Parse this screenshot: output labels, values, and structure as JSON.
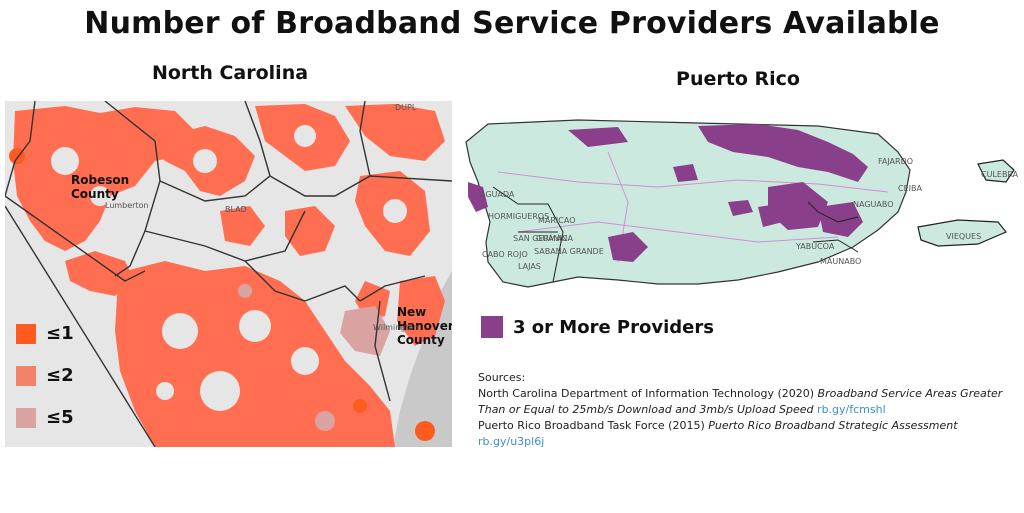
{
  "title": "Number of Broadband Service Providers Available",
  "north_carolina": {
    "title": "North Carolina",
    "county_labels": {
      "robeson": "Robeson\nCounty",
      "new_hanover": "New\nHanover\nCounty"
    },
    "town_labels": {
      "lumberton": "Lumberton",
      "wilmington": "Wilmington",
      "bladen": "BLAD",
      "duplin": "DUPL"
    },
    "legend": [
      {
        "label": "≤1",
        "color": "#ff5a1f"
      },
      {
        "label": "≤2",
        "color": "#f2826a"
      },
      {
        "label": "≤5",
        "color": "#d9a3a1"
      }
    ]
  },
  "puerto_rico": {
    "title": "Puerto Rico",
    "municipality_labels": {
      "aguadilla": "AGUADA",
      "hormigueros": "HORMIGUEROS",
      "san_german": "SAN GERMÁN",
      "cabo_rojo": "CABO ROJO",
      "lajas": "LAJAS",
      "guanica": "GUÁNICA",
      "maricao": "MARICAO",
      "sabana_grande": "SABANA GRANDE",
      "naguabo": "NAGUABO",
      "fajardo": "FAJARDO",
      "ceiba": "CEIBA",
      "yabucoa": "YABUCOA",
      "maunabo": "MAUNABO",
      "culebra": "CULEBRA",
      "vieques": "VIEQUES"
    },
    "legend": {
      "label": "3 or More Providers",
      "color": "#8a3f8a"
    }
  },
  "sources": {
    "heading": "Sources:",
    "nc_text": "North Carolina Department of Information Technology (2020) ",
    "nc_title": "Broadband Service Areas Greater Than or Equal to 25mb/s Download and 3mb/s Upload Speed",
    "nc_link": "rb.gy/fcmshl",
    "pr_text": "Puerto Rico Broadband Task Force (2015) ",
    "pr_title": "Puerto Rico Broadband Strategic Assessment",
    "pr_link": "rb.gy/u3pl6j"
  },
  "colors": {
    "nc_base": "#e6e6e6",
    "nc_primary": "#ff6e50",
    "nc_dark": "#ff5a1f",
    "nc_grey": "#d9a3a1",
    "ocean": "#c9c9c9",
    "pr_land": "#cbe9df",
    "pr_purple": "#8a3f8a"
  }
}
